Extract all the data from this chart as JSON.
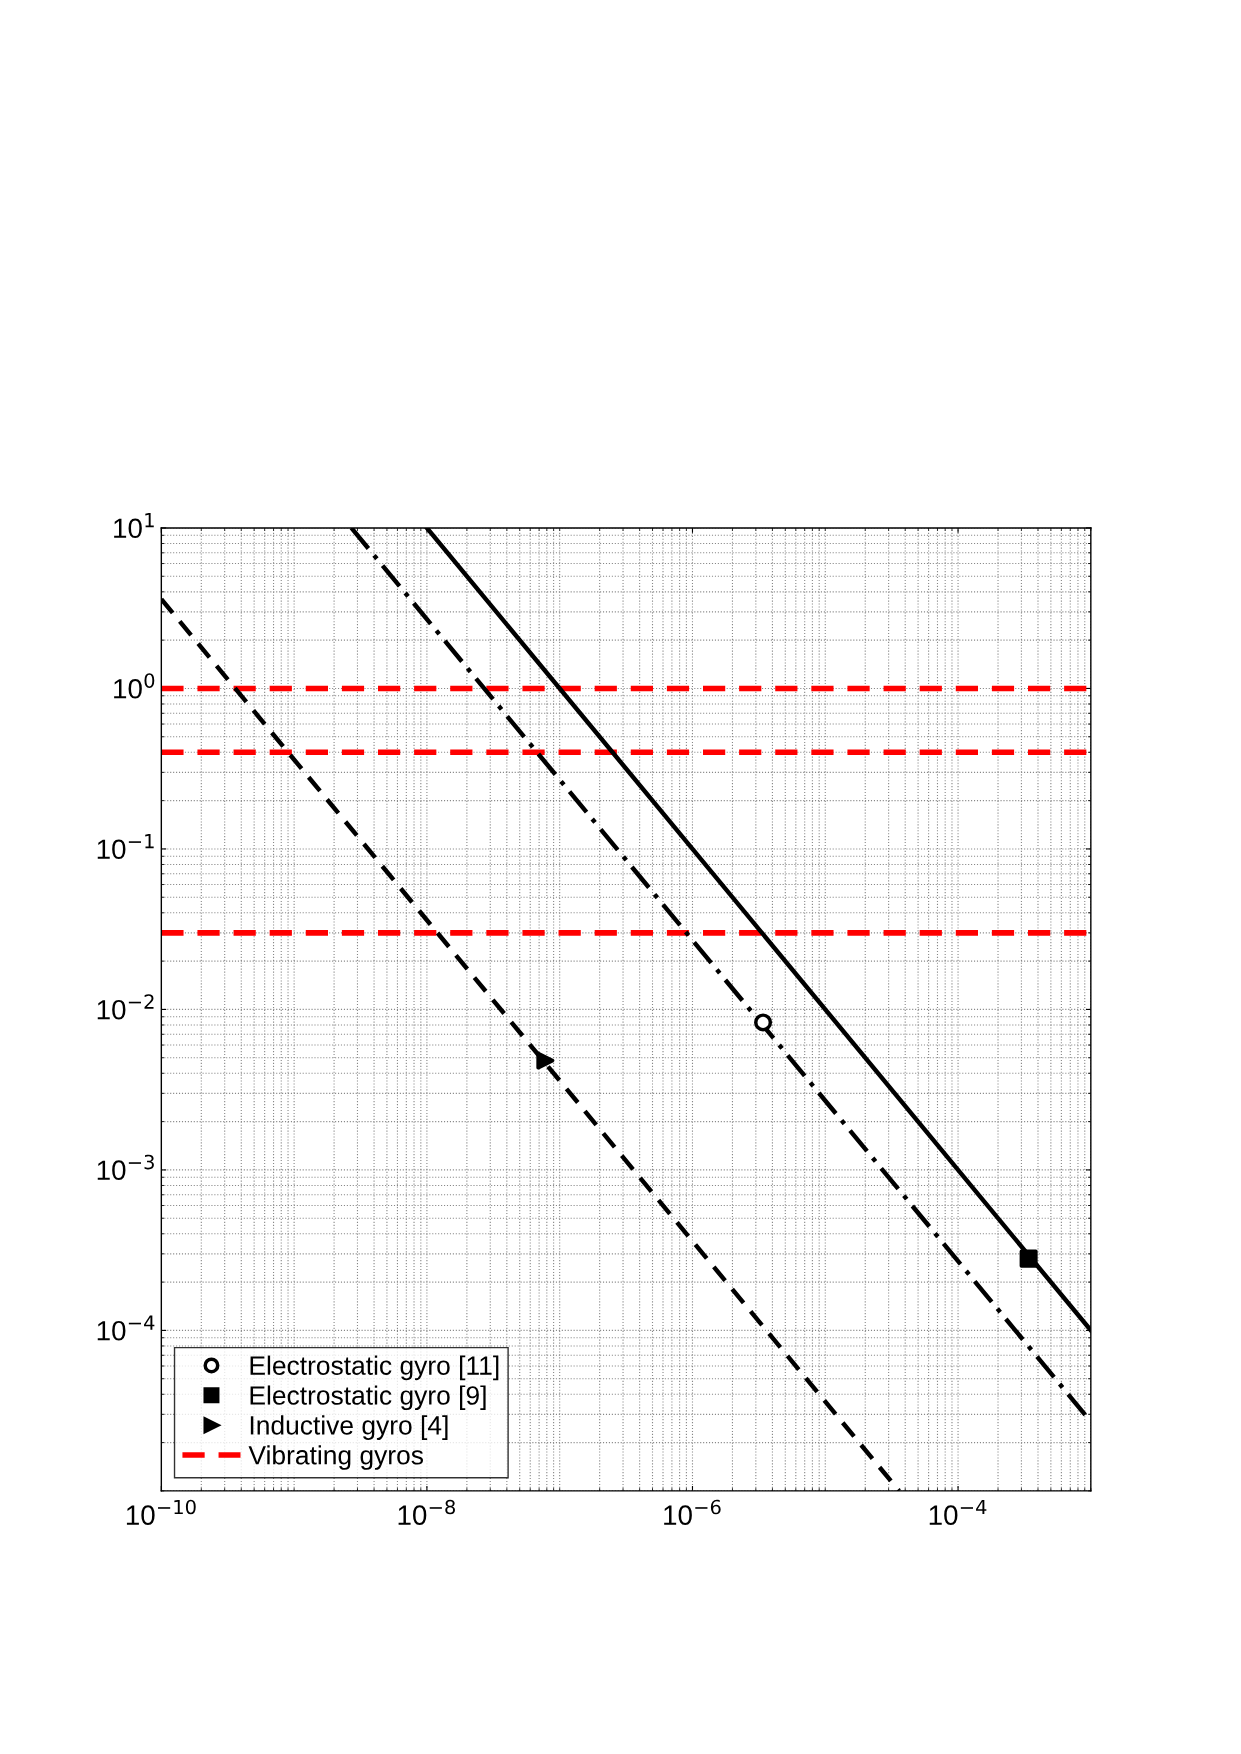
{
  "chart_data": {
    "type": "line",
    "log": "xy",
    "xlim": [
      1e-10,
      0.001
    ],
    "xticks": [
      {
        "value": 1e-10,
        "label": "10$^{−10}$"
      },
      {
        "value": 1e-08,
        "label": "10$^{−8}$"
      },
      {
        "value": 1e-06,
        "label": "10$^{−6}$"
      },
      {
        "value": 0.0001,
        "label": "10$^{−4}$"
      }
    ],
    "ylim": [
      1e-05,
      10
    ],
    "yticks": [
      {
        "value": 0.0001,
        "label": "10$^{−4}$"
      },
      {
        "value": 0.001,
        "label": "10$^{−3}$"
      },
      {
        "value": 0.01,
        "label": "10$^{−2}$"
      },
      {
        "value": 0.1,
        "label": "10$^{−1}$"
      },
      {
        "value": 1,
        "label": "10$^{0}$"
      },
      {
        "value": 10,
        "label": "10$^{1}$"
      }
    ],
    "grid": true,
    "legend": "bottom left",
    "series": [
      {
        "type": "scatter",
        "name": "Electrostatic gyro [11]",
        "color": "#000000",
        "marker": "circle",
        "x": [
          3.4e-06
        ],
        "values": [
          0.0083
        ]
      },
      {
        "type": "scatter",
        "name": "Electrostatic gyro [9]",
        "color": "#000000",
        "marker": "square",
        "x": [
          0.00034
        ],
        "values": [
          0.00028
        ]
      },
      {
        "type": "scatter",
        "name": "Inductive gyro [4]",
        "color": "#000000",
        "marker": "triangle",
        "x": [
          7.8e-08
        ],
        "values": [
          0.0048
        ]
      },
      {
        "color": "#000000",
        "line_style": "solid",
        "x": [
          1e-08,
          0.001
        ],
        "values": [
          10,
          0.0001
        ]
      },
      {
        "color": "#000000",
        "line_style": "dashdot",
        "x": [
          2.7e-09,
          0.001
        ],
        "values": [
          10,
          2.7e-05
        ]
      },
      {
        "color": "#000000",
        "line_style": "dashed",
        "x": [
          1e-10,
          3.6e-05
        ],
        "values": [
          3.6,
          1e-05
        ]
      }
    ],
    "ref_lines": [
      {
        "axis": "y",
        "value": 1,
        "label": "Vibrating gyros",
        "color": "#ff0000",
        "line_style": "dashed"
      },
      {
        "axis": "y",
        "value": 0.4,
        "color": "#ff0000",
        "line_style": "dashed"
      },
      {
        "axis": "y",
        "value": 0.03,
        "color": "#ff0000",
        "line_style": "dashed"
      }
    ]
  }
}
